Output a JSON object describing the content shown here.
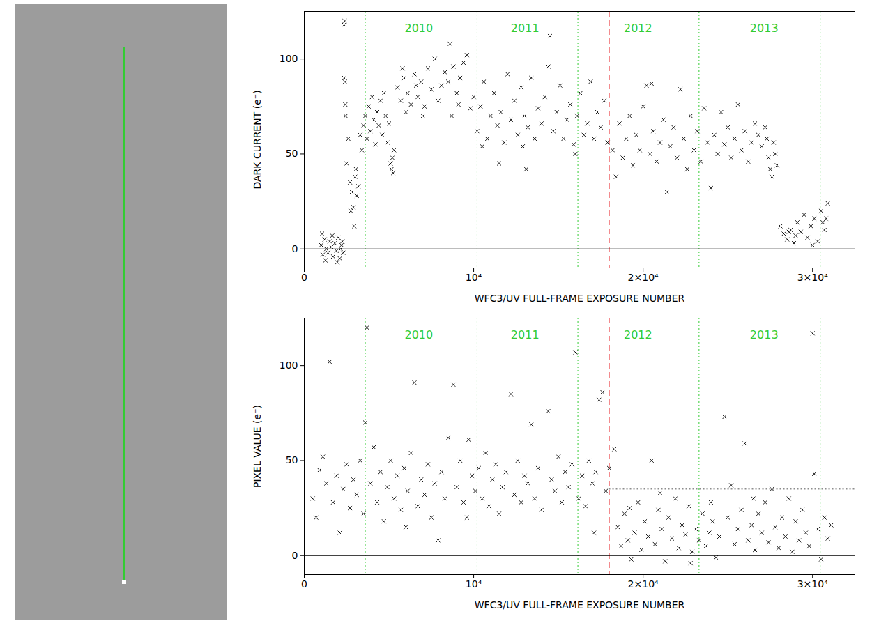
{
  "chart_data": [
    {
      "type": "scatter",
      "xlabel": "WFC3/UV FULL-FRAME EXPOSURE NUMBER",
      "ylabel": "DARK CURRENT (e⁻)",
      "xlim": [
        0,
        32500
      ],
      "xticks": [
        0,
        {
          "value": 10000,
          "label": "10⁴"
        },
        {
          "value": 20000,
          "label": "2×10⁴"
        },
        {
          "value": 30000,
          "label": "3×10⁴"
        }
      ],
      "ylim": [
        -10,
        125
      ],
      "yticks": [
        0,
        50,
        100
      ],
      "marker": "x",
      "color": "#000000",
      "x": [
        1000,
        1100,
        1200,
        1300,
        1400,
        1500,
        1600,
        1700,
        1800,
        1900,
        2000,
        2100,
        2200,
        2300,
        1050,
        1250,
        1650,
        1950,
        2150,
        2250,
        2350,
        2380,
        2360,
        2400,
        2420,
        2440,
        2500,
        2600,
        2700,
        2800,
        2900,
        3000,
        3100,
        3200,
        3300,
        3400,
        3500,
        2750,
        3050,
        2950,
        3600,
        3700,
        3800,
        3900,
        4000,
        4100,
        4200,
        4300,
        4400,
        4500,
        4600,
        4700,
        4800,
        4900,
        5000,
        5100,
        5150,
        5200,
        5250,
        5300,
        5500,
        5700,
        5900,
        6100,
        6300,
        6500,
        6700,
        6900,
        7100,
        7300,
        7500,
        7700,
        7900,
        8100,
        8300,
        8500,
        8600,
        8800,
        9000,
        9200,
        9400,
        9600,
        9800,
        10000,
        8700,
        6000,
        7000,
        5800,
        9100,
        6600,
        10200,
        10400,
        10600,
        10800,
        11000,
        11200,
        11400,
        11600,
        11800,
        12000,
        12200,
        12400,
        12600,
        12800,
        13000,
        13200,
        13400,
        13600,
        13800,
        14000,
        14200,
        14500,
        14700,
        14900,
        15100,
        15300,
        15500,
        15700,
        15900,
        16100,
        16300,
        16500,
        16700,
        16900,
        17100,
        17300,
        17500,
        17700,
        17900,
        11500,
        13100,
        16000,
        12900,
        14400,
        10500,
        18200,
        18400,
        18600,
        18800,
        19000,
        19200,
        19400,
        19600,
        19800,
        20000,
        20200,
        20400,
        20600,
        20800,
        21000,
        21200,
        21400,
        21600,
        21800,
        22000,
        22200,
        22400,
        22600,
        22800,
        23000,
        23200,
        23400,
        23600,
        23800,
        24000,
        24200,
        24400,
        24600,
        24800,
        25000,
        25200,
        25400,
        25600,
        25800,
        26000,
        26200,
        26400,
        26600,
        26800,
        27000,
        20500,
        27200,
        27400,
        27500,
        27600,
        27700,
        27800,
        27900,
        27300,
        28100,
        28300,
        28500,
        28700,
        28900,
        29100,
        29300,
        29500,
        29700,
        29900,
        30100,
        30300,
        30500,
        30700,
        30900,
        29000,
        30000,
        30600,
        30800,
        28600
      ],
      "values": [
        2,
        -3,
        5,
        0,
        -2,
        4,
        1,
        -4,
        3,
        -1,
        6,
        -5,
        2,
        -2,
        8,
        -6,
        7,
        -7,
        0,
        4,
        118,
        120,
        90,
        88,
        76,
        70,
        45,
        58,
        35,
        30,
        22,
        38,
        28,
        33,
        60,
        52,
        65,
        20,
        42,
        12,
        70,
        58,
        75,
        62,
        80,
        68,
        55,
        72,
        65,
        78,
        60,
        82,
        70,
        56,
        66,
        45,
        42,
        48,
        40,
        52,
        85,
        78,
        90,
        82,
        76,
        92,
        80,
        88,
        75,
        95,
        84,
        100,
        78,
        86,
        93,
        88,
        108,
        96,
        82,
        90,
        98,
        102,
        74,
        80,
        70,
        72,
        70,
        95,
        76,
        86,
        62,
        75,
        88,
        58,
        70,
        82,
        65,
        72,
        56,
        92,
        68,
        78,
        60,
        85,
        70,
        64,
        90,
        58,
        74,
        66,
        80,
        112,
        62,
        72,
        86,
        58,
        68,
        76,
        55,
        70,
        82,
        60,
        66,
        88,
        58,
        72,
        64,
        78,
        56,
        45,
        42,
        50,
        54,
        96,
        54,
        52,
        38,
        66,
        48,
        58,
        70,
        44,
        60,
        52,
        75,
        86,
        50,
        62,
        46,
        56,
        68,
        30,
        54,
        64,
        48,
        84,
        58,
        42,
        70,
        52,
        62,
        46,
        74,
        56,
        32,
        60,
        50,
        72,
        55,
        64,
        48,
        58,
        76,
        52,
        62,
        46,
        56,
        66,
        60,
        54,
        87,
        64,
        48,
        42,
        38,
        56,
        50,
        44,
        58,
        12,
        8,
        5,
        10,
        3,
        14,
        9,
        18,
        6,
        12,
        16,
        4,
        20,
        10,
        24,
        7,
        2,
        14,
        16,
        9
      ],
      "annotations": [
        {
          "text": "2010",
          "x": 6760,
          "y": 116,
          "color": "#33cc33"
        },
        {
          "text": "2011",
          "x": 13030,
          "y": 116,
          "color": "#33cc33"
        },
        {
          "text": "2012",
          "x": 19700,
          "y": 116,
          "color": "#33cc33"
        },
        {
          "text": "2013",
          "x": 27140,
          "y": 116,
          "color": "#33cc33"
        }
      ],
      "reference_lines": [
        {
          "axis": "x",
          "values": [
            3600,
            10200,
            16150,
            23300,
            30450
          ],
          "color": "#33cc33",
          "line_style": "dotted"
        },
        {
          "axis": "x",
          "values": [
            18000
          ],
          "color": "#e8262b",
          "line_style": "dashed"
        },
        {
          "axis": "y",
          "values": [
            0
          ],
          "color": "#000000",
          "line_style": "solid"
        }
      ]
    },
    {
      "type": "scatter",
      "xlabel": "WFC3/UV FULL-FRAME EXPOSURE NUMBER",
      "ylabel": "PIXEL VALUE (e⁻)",
      "xlim": [
        0,
        32500
      ],
      "xticks": [
        0,
        {
          "value": 10000,
          "label": "10⁴"
        },
        {
          "value": 20000,
          "label": "2×10⁴"
        },
        {
          "value": 30000,
          "label": "3×10⁴"
        }
      ],
      "ylim": [
        -10,
        125
      ],
      "yticks": [
        0,
        50,
        100
      ],
      "marker": "x",
      "color": "#000000",
      "x": [
        500,
        700,
        900,
        1100,
        1300,
        1500,
        1700,
        1900,
        2100,
        2300,
        2500,
        2700,
        2900,
        3100,
        3300,
        3500,
        3600,
        3700,
        3900,
        4100,
        4300,
        4500,
        4700,
        4900,
        5100,
        5300,
        5500,
        5700,
        5900,
        6100,
        6300,
        6500,
        6700,
        6900,
        7100,
        7300,
        7500,
        7700,
        7900,
        8100,
        8300,
        8500,
        8800,
        9000,
        9200,
        9400,
        9700,
        9900,
        10100,
        10300,
        10500,
        10700,
        10900,
        11100,
        11300,
        11500,
        11700,
        11900,
        12200,
        12400,
        12600,
        12800,
        13000,
        13200,
        13400,
        13600,
        13800,
        14000,
        14400,
        14600,
        14800,
        15000,
        15200,
        15400,
        15600,
        15800,
        16000,
        16200,
        16400,
        16600,
        16800,
        17000,
        17200,
        17400,
        17600,
        17800,
        18000,
        17100,
        6000,
        9600,
        18300,
        18500,
        18700,
        18900,
        19100,
        19300,
        19500,
        19700,
        19900,
        20100,
        20300,
        20500,
        20700,
        20900,
        21100,
        21300,
        21500,
        21700,
        21900,
        22100,
        22300,
        22500,
        22700,
        22900,
        23100,
        23300,
        23500,
        23700,
        23900,
        24100,
        24300,
        24500,
        24800,
        25000,
        25200,
        25400,
        25600,
        25800,
        26000,
        26200,
        26400,
        26600,
        26800,
        27000,
        27200,
        27400,
        27600,
        27800,
        28000,
        28200,
        28400,
        28600,
        28800,
        29000,
        29200,
        29400,
        29600,
        29800,
        30000,
        30100,
        30300,
        30500,
        30700,
        30900,
        31100,
        19200,
        21000,
        24000,
        26500,
        22800
      ],
      "values": [
        30,
        20,
        45,
        52,
        38,
        102,
        28,
        42,
        12,
        35,
        48,
        25,
        40,
        32,
        50,
        22,
        70,
        120,
        38,
        57,
        28,
        44,
        18,
        36,
        50,
        30,
        42,
        24,
        46,
        34,
        54,
        91,
        26,
        40,
        32,
        48,
        20,
        38,
        8,
        44,
        30,
        62,
        90,
        36,
        50,
        28,
        61,
        42,
        34,
        46,
        30,
        54,
        26,
        40,
        48,
        22,
        36,
        44,
        85,
        32,
        50,
        28,
        42,
        38,
        69,
        30,
        46,
        24,
        76,
        40,
        34,
        52,
        28,
        44,
        36,
        48,
        107,
        30,
        42,
        26,
        50,
        38,
        44,
        82,
        86,
        34,
        46,
        12,
        15,
        20,
        56,
        15,
        5,
        22,
        8,
        -2,
        12,
        28,
        3,
        18,
        10,
        50,
        6,
        24,
        14,
        -3,
        20,
        9,
        30,
        4,
        16,
        11,
        26,
        2,
        14,
        8,
        22,
        5,
        12,
        18,
        -1,
        10,
        73,
        20,
        37,
        6,
        14,
        24,
        59,
        8,
        16,
        3,
        22,
        12,
        28,
        7,
        35,
        15,
        4,
        20,
        10,
        30,
        2,
        18,
        8,
        24,
        12,
        5,
        117,
        43,
        14,
        -2,
        20,
        9,
        16,
        25,
        33,
        28,
        30,
        -4
      ],
      "annotations": [
        {
          "text": "2010",
          "x": 6760,
          "y": 116,
          "color": "#33cc33"
        },
        {
          "text": "2011",
          "x": 13030,
          "y": 116,
          "color": "#33cc33"
        },
        {
          "text": "2012",
          "x": 19700,
          "y": 116,
          "color": "#33cc33"
        },
        {
          "text": "2013",
          "x": 27140,
          "y": 116,
          "color": "#33cc33"
        }
      ],
      "reference_lines": [
        {
          "axis": "x",
          "values": [
            3600,
            10200,
            16150,
            23300,
            30450
          ],
          "color": "#33cc33",
          "line_style": "dotted"
        },
        {
          "axis": "x",
          "values": [
            18000
          ],
          "color": "#e8262b",
          "line_style": "dashed"
        },
        {
          "axis": "y",
          "values": [
            0
          ],
          "color": "#000000",
          "line_style": "solid"
        },
        {
          "axis": "y",
          "values": [
            35
          ],
          "from": 18000,
          "color": "#555555",
          "line_style": "dotted"
        }
      ]
    }
  ]
}
